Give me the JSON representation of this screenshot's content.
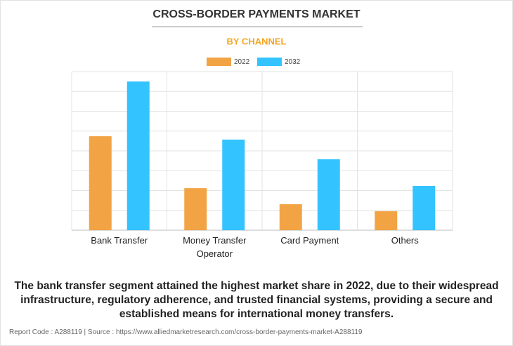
{
  "chart_data": {
    "type": "bar",
    "title": "CROSS-BORDER PAYMENTS MARKET",
    "subtitle": "BY CHANNEL",
    "categories": [
      "Bank Transfer",
      "Money Transfer Operator",
      "Card Payment",
      "Others"
    ],
    "series": [
      {
        "name": "2022",
        "color": "#f2a445",
        "values": [
          4.74,
          2.12,
          1.31,
          0.96
        ]
      },
      {
        "name": "2032",
        "color": "#33c4ff",
        "values": [
          7.5,
          4.57,
          3.58,
          2.23
        ]
      }
    ],
    "ylim": [
      0,
      8
    ],
    "yticks": [
      0,
      1,
      2,
      3,
      4,
      5,
      6,
      7,
      8
    ],
    "grid": true
  },
  "description": "The bank transfer segment attained the highest market share in 2022, due to their widespread infrastructure, regulatory adherence, and trusted financial systems, providing a secure and established means for international money transfers.",
  "footer": "Report Code : A288119  |  Source : https://www.alliedmarketresearch.com/cross-border-payments-market-A288119"
}
